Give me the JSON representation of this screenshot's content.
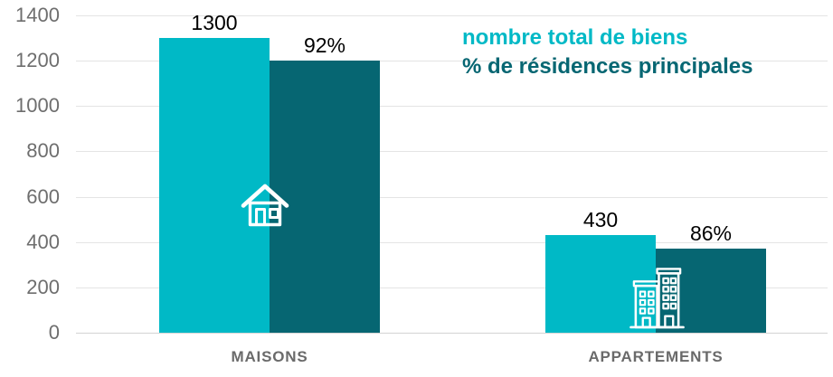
{
  "chart_data": {
    "type": "bar",
    "title": "",
    "xlabel": "",
    "ylabel": "",
    "categories": [
      "MAISONS",
      "APPARTEMENTS"
    ],
    "series": [
      {
        "name": "nombre total de biens",
        "color": "#00b9c6",
        "values": [
          1300,
          430
        ],
        "value_labels": [
          "1300",
          "430"
        ]
      },
      {
        "name": "% de résidences principales",
        "color": "#066672",
        "values": [
          92,
          86
        ],
        "value_labels": [
          "92%",
          "86%"
        ],
        "bar_heights_in_axis_units": [
          1200,
          370
        ]
      }
    ],
    "ylim": [
      0,
      1400
    ],
    "yticks": [
      0,
      200,
      400,
      600,
      800,
      1000,
      1200,
      1400
    ],
    "grid": "horizontal",
    "legend_position": "top-right",
    "category_icons": [
      "house-icon",
      "buildings-icon"
    ]
  },
  "colors": {
    "background": "#ffffff",
    "gridline": "#e4e4e4",
    "axis_text": "#6e6e6e",
    "category_text": "#6a6a6a",
    "data_label_text": "#000000",
    "icon_stroke": "#ffffff"
  }
}
